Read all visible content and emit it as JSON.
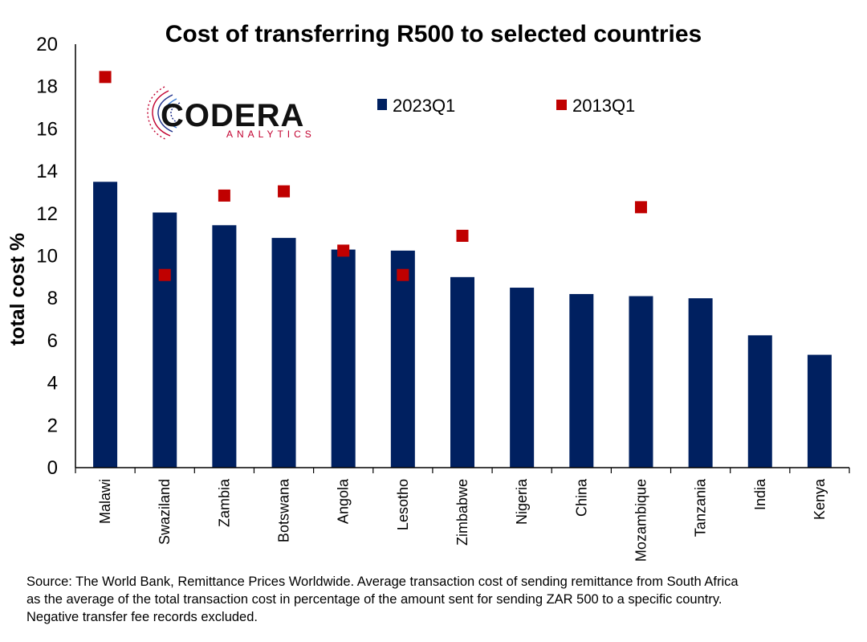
{
  "chart_data": {
    "type": "bar",
    "title": "Cost of transferring R500 to selected countries",
    "ylabel": "total cost %",
    "xlabel": "",
    "ylim": [
      0,
      20
    ],
    "yticks": [
      0,
      2,
      4,
      6,
      8,
      10,
      12,
      14,
      16,
      18,
      20
    ],
    "categories": [
      "Malawi",
      "Swaziland",
      "Zambia",
      "Botswana",
      "Angola",
      "Lesotho",
      "Zimbabwe",
      "Nigeria",
      "China",
      "Mozambique",
      "Tanzania",
      "India",
      "Kenya"
    ],
    "series": [
      {
        "name": "2023Q1",
        "type": "bar",
        "color": "#002060",
        "values": [
          13.5,
          12.05,
          11.45,
          10.85,
          10.3,
          10.25,
          9.0,
          8.5,
          8.2,
          8.1,
          8.0,
          6.25,
          5.33
        ]
      },
      {
        "name": "2013Q1",
        "type": "scatter",
        "marker": "square",
        "color": "#c00000",
        "values": [
          18.45,
          9.1,
          12.85,
          13.05,
          10.25,
          9.1,
          10.95,
          null,
          null,
          12.3,
          null,
          null,
          null
        ]
      }
    ],
    "legend": "top-center",
    "grid": false
  },
  "logo": {
    "main": "CODERA",
    "sub": "ANALYTICS"
  },
  "source": {
    "line1": "Source: The World Bank, Remittance Prices Worldwide. Average transaction cost of sending remittance from South Africa",
    "line2": "as the average of the total transaction cost in percentage of the amount sent for sending ZAR 500 to a specific country.",
    "line3": "Negative transfer fee records excluded."
  }
}
